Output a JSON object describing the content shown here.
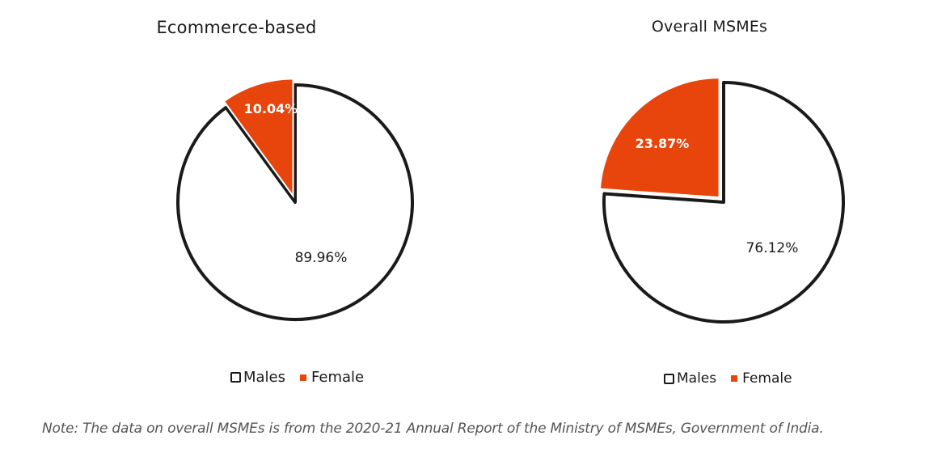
{
  "colors": {
    "male_fill": "#ffffff",
    "male_stroke": "#1a1a1a",
    "female_fill": "#e8450d"
  },
  "chart_data": [
    {
      "type": "pie",
      "title": "Ecommerce-based",
      "labels": [
        "Males",
        "Female"
      ],
      "values": [
        89.96,
        10.04
      ],
      "data_labels": [
        "89.96%",
        "10.04%"
      ],
      "exploded": [
        "Female"
      ],
      "legend_position": "bottom"
    },
    {
      "type": "pie",
      "title": "Overall MSMEs",
      "labels": [
        "Males",
        "Female"
      ],
      "values": [
        76.12,
        23.87
      ],
      "data_labels": [
        "76.12%",
        "23.87%"
      ],
      "exploded": [
        "Female"
      ],
      "legend_position": "bottom"
    }
  ],
  "legend": {
    "males_label": "Males",
    "female_label": "Female"
  },
  "note": "Note: The data on overall MSMEs is from the 2020-21 Annual Report of the Ministry of MSMEs, Government of India."
}
